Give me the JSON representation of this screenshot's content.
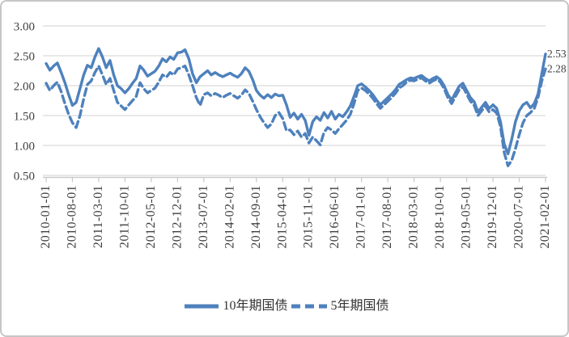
{
  "chart_data": {
    "type": "line",
    "title": "",
    "xlabel": "",
    "ylabel": "",
    "ylim": [
      0.5,
      3.0
    ],
    "y_ticks": [
      "3.00",
      "2.50",
      "2.00",
      "1.50",
      "1.00",
      "0.50"
    ],
    "y_tick_values": [
      3.0,
      2.5,
      2.0,
      1.5,
      1.0,
      0.5
    ],
    "grid": "horizontal",
    "legend_position": "bottom",
    "x_tick_interval_months": 7,
    "x_tick_labels": [
      "2010-01-01",
      "2010-08-01",
      "2011-03-01",
      "2011-10-01",
      "2012-05-01",
      "2012-12-01",
      "2013-07-01",
      "2014-02-01",
      "2014-09-01",
      "2015-04-01",
      "2015-11-01",
      "2016-06-01",
      "2017-01-01",
      "2017-08-01",
      "2018-03-01",
      "2018-10-01",
      "2019-05-01",
      "2019-12-01",
      "2020-07-01",
      "2021-02-01"
    ],
    "x_range": [
      "2010-01",
      "2021-02"
    ],
    "colors": {
      "line": "#4E81BD",
      "grid": "#D9D9D9",
      "axis": "#C9C9C9",
      "tick_text": "#3F3F3F",
      "data_label": "#404040"
    },
    "series": [
      {
        "name": "10年期国债",
        "style": "solid",
        "end_label": "2.53",
        "values": [
          2.37,
          2.26,
          2.33,
          2.38,
          2.22,
          2.05,
          1.85,
          1.67,
          1.72,
          1.95,
          2.18,
          2.34,
          2.3,
          2.48,
          2.62,
          2.48,
          2.3,
          2.42,
          2.18,
          2.0,
          1.95,
          1.88,
          1.95,
          2.04,
          2.12,
          2.33,
          2.26,
          2.16,
          2.2,
          2.24,
          2.33,
          2.45,
          2.4,
          2.48,
          2.44,
          2.55,
          2.56,
          2.6,
          2.45,
          2.2,
          2.05,
          2.15,
          2.2,
          2.25,
          2.18,
          2.22,
          2.18,
          2.15,
          2.18,
          2.21,
          2.17,
          2.14,
          2.2,
          2.3,
          2.24,
          2.1,
          1.92,
          1.84,
          1.79,
          1.85,
          1.8,
          1.86,
          1.83,
          1.84,
          1.68,
          1.47,
          1.54,
          1.44,
          1.52,
          1.42,
          1.17,
          1.4,
          1.48,
          1.42,
          1.55,
          1.46,
          1.57,
          1.44,
          1.52,
          1.48,
          1.56,
          1.66,
          1.82,
          2.0,
          2.03,
          1.98,
          1.92,
          1.85,
          1.76,
          1.68,
          1.74,
          1.8,
          1.86,
          1.93,
          2.02,
          2.06,
          2.1,
          2.13,
          2.12,
          2.15,
          2.17,
          2.12,
          2.08,
          2.12,
          2.15,
          2.1,
          2.0,
          1.85,
          1.76,
          1.88,
          1.99,
          2.04,
          1.92,
          1.8,
          1.73,
          1.56,
          1.64,
          1.72,
          1.62,
          1.68,
          1.62,
          1.4,
          1.02,
          0.86,
          1.1,
          1.4,
          1.58,
          1.68,
          1.72,
          1.63,
          1.7,
          1.86,
          2.2,
          2.53
        ]
      },
      {
        "name": "5年期国债",
        "style": "dashed",
        "end_label": "2.28",
        "values": [
          2.04,
          1.92,
          2.0,
          2.06,
          1.9,
          1.7,
          1.52,
          1.38,
          1.3,
          1.5,
          1.78,
          2.02,
          2.08,
          2.22,
          2.33,
          2.18,
          2.02,
          2.12,
          1.92,
          1.72,
          1.66,
          1.6,
          1.68,
          1.75,
          1.82,
          2.05,
          1.95,
          1.88,
          1.92,
          1.96,
          2.06,
          2.18,
          2.14,
          2.22,
          2.18,
          2.28,
          2.3,
          2.33,
          2.18,
          2.0,
          1.8,
          1.67,
          1.85,
          1.88,
          1.83,
          1.87,
          1.84,
          1.8,
          1.84,
          1.87,
          1.83,
          1.79,
          1.84,
          1.93,
          1.87,
          1.74,
          1.6,
          1.48,
          1.38,
          1.3,
          1.36,
          1.5,
          1.55,
          1.45,
          1.25,
          1.26,
          1.18,
          1.24,
          1.14,
          1.2,
          1.04,
          1.14,
          1.08,
          1.01,
          1.22,
          1.3,
          1.26,
          1.2,
          1.28,
          1.35,
          1.42,
          1.52,
          1.7,
          1.92,
          1.96,
          1.92,
          1.86,
          1.79,
          1.7,
          1.62,
          1.68,
          1.74,
          1.8,
          1.87,
          1.96,
          2.0,
          2.06,
          2.09,
          2.08,
          2.11,
          2.13,
          2.08,
          2.04,
          2.08,
          2.11,
          2.06,
          1.95,
          1.8,
          1.7,
          1.82,
          1.93,
          1.98,
          1.86,
          1.74,
          1.67,
          1.5,
          1.58,
          1.66,
          1.56,
          1.6,
          1.54,
          1.32,
          0.88,
          0.66,
          0.75,
          0.95,
          1.18,
          1.38,
          1.5,
          1.55,
          1.62,
          1.8,
          2.08,
          2.28
        ]
      }
    ]
  }
}
